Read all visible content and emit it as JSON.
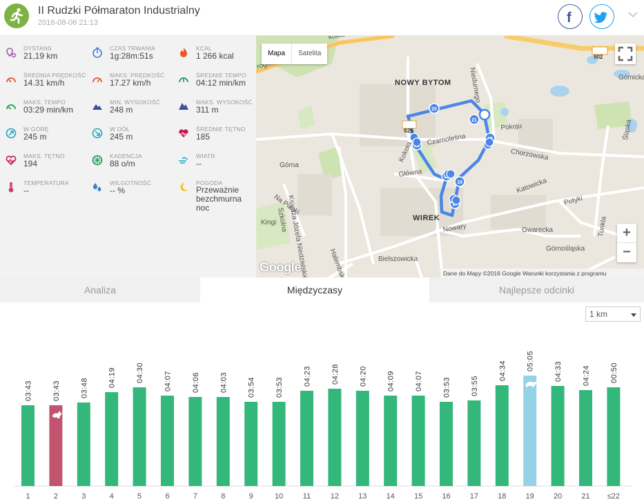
{
  "header": {
    "title": "II Rudzki Półmaraton Industrialny",
    "date": "2016-08-06 21:13",
    "logo_icon": "runner-icon",
    "facebook_icon": "facebook-icon",
    "twitter_icon": "twitter-icon",
    "expand_icon": "chevron-down-icon"
  },
  "stats": [
    {
      "label": "Dystans",
      "value": "21,19 km",
      "icon": "distance-pin-icon",
      "color": "#9c5aa6"
    },
    {
      "label": "Czas trwania",
      "value": "1g:28m:51s",
      "icon": "stopwatch-icon",
      "color": "#3b7fd0"
    },
    {
      "label": "Kcal",
      "value": "1 266 kcal",
      "icon": "flame-icon",
      "color": "#e8562a"
    },
    {
      "label": "Średnia prędkość",
      "value": "14.31 km/h",
      "icon": "speedometer-icon",
      "color": "#e8562a"
    },
    {
      "label": "Maks. prędkość",
      "value": "17.27 km/h",
      "icon": "speedometer-max-icon",
      "color": "#e8562a"
    },
    {
      "label": "Średnie tempo",
      "value": "04:12 min/km",
      "icon": "pace-icon",
      "color": "#1f9d55"
    },
    {
      "label": "Maks. tempo",
      "value": "03:29 min/km",
      "icon": "pace-max-icon",
      "color": "#1f9d55"
    },
    {
      "label": "Min. wysokość",
      "value": "248 m",
      "icon": "mountain-min-icon",
      "color": "#3a4fa0"
    },
    {
      "label": "Maks. wysokość",
      "value": "311 m",
      "icon": "mountain-max-icon",
      "color": "#3a4fa0"
    },
    {
      "label": "W górę",
      "value": "245 m",
      "icon": "ascent-icon",
      "color": "#1aa5c4"
    },
    {
      "label": "W dół",
      "value": "245 m",
      "icon": "descent-icon",
      "color": "#1aa5c4"
    },
    {
      "label": "Średnie tętno",
      "value": "185",
      "icon": "heart-icon",
      "color": "#c2185b"
    },
    {
      "label": "Maks. tętno",
      "value": "194",
      "icon": "heart-max-icon",
      "color": "#c2185b"
    },
    {
      "label": "Kadencja",
      "value": "88 o/m",
      "icon": "wheel-icon",
      "color": "#1f9d55"
    },
    {
      "label": "Wiatr",
      "value": "--",
      "icon": "wind-icon",
      "color": "#1aa5c4"
    },
    {
      "label": "Temperatura",
      "value": "--",
      "icon": "thermometer-icon",
      "color": "#c2185b"
    },
    {
      "label": "Wilgotność",
      "value": "-- %",
      "icon": "droplets-icon",
      "color": "#3b7fd0"
    },
    {
      "label": "Pogoda",
      "value": "Przeważnie bezchmurna noc",
      "icon": "moon-icon",
      "color": "#f2c318"
    }
  ],
  "map": {
    "type_map": "Mapa",
    "type_satellite": "Satelita",
    "zoom_in": "+",
    "zoom_out": "−",
    "google_logo": "Google",
    "attribution": "Dane do Mapy ©2016 Google    Warunki korzystania z programu",
    "labels": [
      {
        "text": "NOWY BYTOM",
        "big": true
      },
      {
        "text": "WIREK",
        "big": true
      },
      {
        "text": "Czarnoleśna"
      },
      {
        "text": "Chorzowska"
      },
      {
        "text": "Pokoju"
      },
      {
        "text": "Główna"
      },
      {
        "text": "Kokota"
      },
      {
        "text": "Katowicka"
      },
      {
        "text": "Nowary"
      },
      {
        "text": "Bielszowicka"
      },
      {
        "text": "Gwarecka"
      },
      {
        "text": "Górnośląska"
      },
      {
        "text": "Potyki"
      },
      {
        "text": "Górna"
      },
      {
        "text": "Na Piaski"
      },
      {
        "text": "Kingi"
      },
      {
        "text": "Szkolna"
      },
      {
        "text": "Halembsk"
      },
      {
        "text": "Księdza Józefa Niedzielskiego"
      },
      {
        "text": "Niedurnego"
      },
      {
        "text": "Gómicka"
      },
      {
        "text": "Śląska"
      },
      {
        "text": "Tunkla"
      },
      {
        "text": "rogowa"
      },
      {
        "text": "kowa"
      },
      {
        "text": "902"
      },
      {
        "text": "925"
      }
    ],
    "markers": [
      "20",
      "21",
      "19",
      "15",
      "18",
      "16",
      "17"
    ],
    "route_color": "#4a86e8"
  },
  "tabs": [
    {
      "label": "Analiza",
      "active": false
    },
    {
      "label": "Międzyczasy",
      "active": true
    },
    {
      "label": "Najlepsze odcinki",
      "active": false
    }
  ],
  "split_select": {
    "value": "1 km"
  },
  "chart_data": {
    "type": "bar",
    "categories": [
      "1",
      "2",
      "3",
      "4",
      "5",
      "6",
      "7",
      "8",
      "9",
      "10",
      "11",
      "12",
      "13",
      "14",
      "15",
      "16",
      "17",
      "18",
      "19",
      "20",
      "21",
      "≤22"
    ],
    "values_seconds": [
      223,
      223,
      228,
      259,
      270,
      247,
      246,
      243,
      234,
      233,
      263,
      268,
      260,
      249,
      247,
      233,
      235,
      274,
      305,
      273,
      264,
      50
    ],
    "labels": [
      "03:43",
      "03:43",
      "03:48",
      "04:19",
      "04:30",
      "04:07",
      "04:06",
      "04:03",
      "03:54",
      "03:53",
      "04:23",
      "04:28",
      "04:20",
      "04:09",
      "04:07",
      "03:53",
      "03:55",
      "04:34",
      "05:05",
      "04:33",
      "04:24",
      "00:50"
    ],
    "bar_heights_fraction": [
      0.69,
      0.69,
      0.71,
      0.8,
      0.84,
      0.77,
      0.76,
      0.76,
      0.72,
      0.72,
      0.81,
      0.83,
      0.81,
      0.77,
      0.77,
      0.72,
      0.73,
      0.86,
      0.94,
      0.85,
      0.82,
      0.84
    ],
    "fastest_index": 1,
    "slowest_index": 18,
    "colors": {
      "normal": "#34b77a",
      "fastest": "#c2546f",
      "slowest": "#94d3e7"
    },
    "fastest_icon": "hare-icon",
    "slowest_icon": "turtle-icon",
    "title": "",
    "xlabel": "",
    "ylabel": ""
  }
}
